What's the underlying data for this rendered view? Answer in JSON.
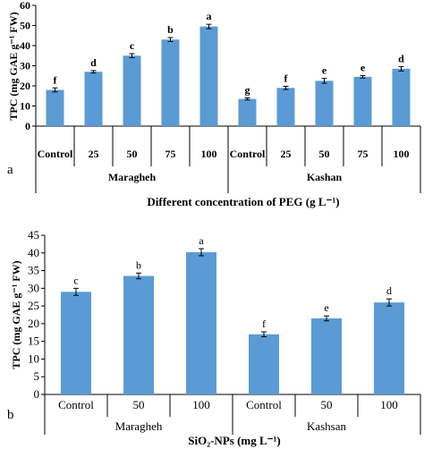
{
  "colors": {
    "bar": "#5b9bd5",
    "axis": "#000000"
  },
  "chart_data": [
    {
      "type": "bar",
      "panel_label": "a",
      "ylabel": "TPC (mg GAE g⁻¹ FW)",
      "xlabel": "Different concentration of PEG (g L⁻¹)",
      "ylim": [
        0,
        60
      ],
      "yticks": [
        "0",
        "10",
        "20",
        "30",
        "40",
        "50",
        "60"
      ],
      "groups": [
        "Maragheh",
        "Kashan"
      ],
      "categories": [
        "Control",
        "25",
        "50",
        "75",
        "100",
        "Control",
        "25",
        "50",
        "75",
        "100"
      ],
      "values": [
        18,
        27,
        35,
        43,
        49.5,
        13.5,
        19,
        22.5,
        24.5,
        28.5
      ],
      "errors": [
        1,
        0.6,
        1,
        1,
        1.1,
        0.5,
        0.8,
        1.2,
        0.6,
        1.1
      ],
      "letters": [
        "f",
        "d",
        "c",
        "b",
        "a",
        "g",
        "f",
        "e",
        "e",
        "d"
      ],
      "grid": false
    },
    {
      "type": "bar",
      "panel_label": "b",
      "ylabel": "TPC (mg GAE g⁻¹ FW)",
      "xlabel": "SiO₂-NPs (mg L⁻¹)",
      "ylim": [
        0,
        45
      ],
      "yticks": [
        "0",
        "5",
        "10",
        "15",
        "20",
        "25",
        "30",
        "35",
        "40",
        "45"
      ],
      "groups": [
        "Maragheh",
        "Kashsan"
      ],
      "categories": [
        "Control",
        "50",
        "100",
        "Control",
        "50",
        "100"
      ],
      "values": [
        29,
        33.5,
        40.2,
        17,
        21.5,
        26
      ],
      "errors": [
        1,
        0.8,
        1,
        0.7,
        0.7,
        1
      ],
      "letters": [
        "c",
        "b",
        "a",
        "f",
        "e",
        "d"
      ],
      "grid": false
    }
  ]
}
